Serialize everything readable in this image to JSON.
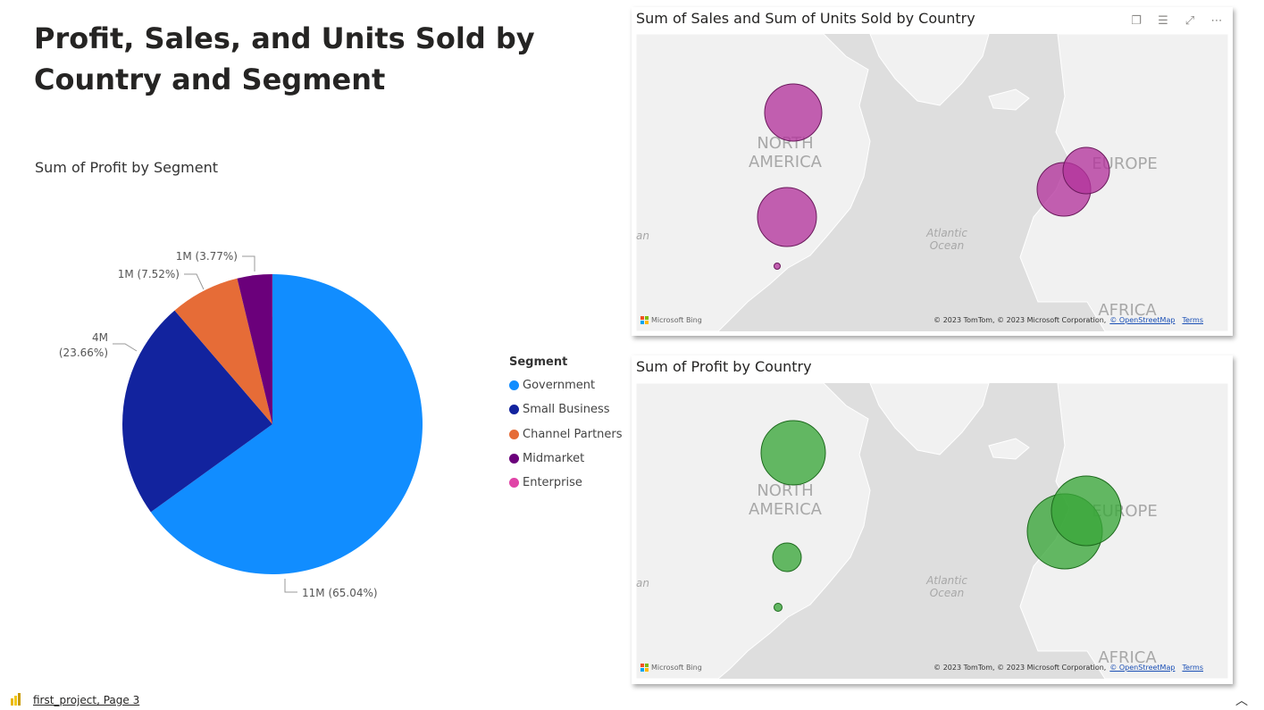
{
  "page": {
    "title": "Profit, Sales, and Units Sold by Country and Segment"
  },
  "pie_chart": {
    "title": "Sum of Profit by Segment",
    "legend_title": "Segment",
    "legend": [
      {
        "label": "Government",
        "color": "#118dff"
      },
      {
        "label": "Small Business",
        "color": "#12239e"
      },
      {
        "label": "Channel Partners",
        "color": "#e66c37"
      },
      {
        "label": "Midmarket",
        "color": "#6b007b"
      },
      {
        "label": "Enterprise",
        "color": "#e044a7"
      }
    ],
    "labels": {
      "government": "11M (65.04%)",
      "small_business_value": "4M",
      "small_business_pct": "(23.66%)",
      "channel_partners": "1M (7.52%)",
      "midmarket": "1M (3.77%)"
    }
  },
  "chart_data": {
    "type": "pie",
    "title": "Sum of Profit by Segment",
    "categories": [
      "Government",
      "Small Business",
      "Channel Partners",
      "Midmarket",
      "Enterprise"
    ],
    "values": [
      65.04,
      23.66,
      7.52,
      3.77,
      0.01
    ],
    "value_labels": [
      "11M (65.04%)",
      "4M (23.66%)",
      "1M (7.52%)",
      "1M (3.77%)",
      ""
    ],
    "colors": [
      "#118dff",
      "#12239e",
      "#e66c37",
      "#6b007b",
      "#e044a7"
    ],
    "legend_position": "right"
  },
  "map_sales": {
    "title": "Sum of Sales and Sum of Units Sold by Country",
    "bubble_color": "#b4359c",
    "labels": {
      "north": "NORTH",
      "america": "AMERICA",
      "europe": "EUROPE",
      "africa": "AFRICA",
      "atlantic": "Atlantic",
      "ocean": "Ocean",
      "edge": "an"
    },
    "bing": "Microsoft Bing",
    "copyright": "© 2023 TomTom, © 2023 Microsoft Corporation,",
    "osm_link": "© OpenStreetMap",
    "terms_link": "Terms"
  },
  "map_profit": {
    "title": "Sum of Profit by Country",
    "bubble_color": "#3aa63a",
    "labels": {
      "north": "NORTH",
      "america": "AMERICA",
      "europe": "EUROPE",
      "africa": "AFRICA",
      "atlantic": "Atlantic",
      "ocean": "Ocean",
      "edge": "an"
    },
    "bing": "Microsoft Bing",
    "copyright": "© 2023 TomTom, © 2023 Microsoft Corporation,",
    "osm_link": "© OpenStreetMap",
    "terms_link": "Terms"
  },
  "header_icons": [
    "copy-icon",
    "filter-icon",
    "focus-mode-icon",
    "more-options-icon"
  ],
  "footer": {
    "page_link": "first_project, Page 3",
    "icon": "power-bi-icon",
    "chevron": "chevron-up-icon"
  }
}
